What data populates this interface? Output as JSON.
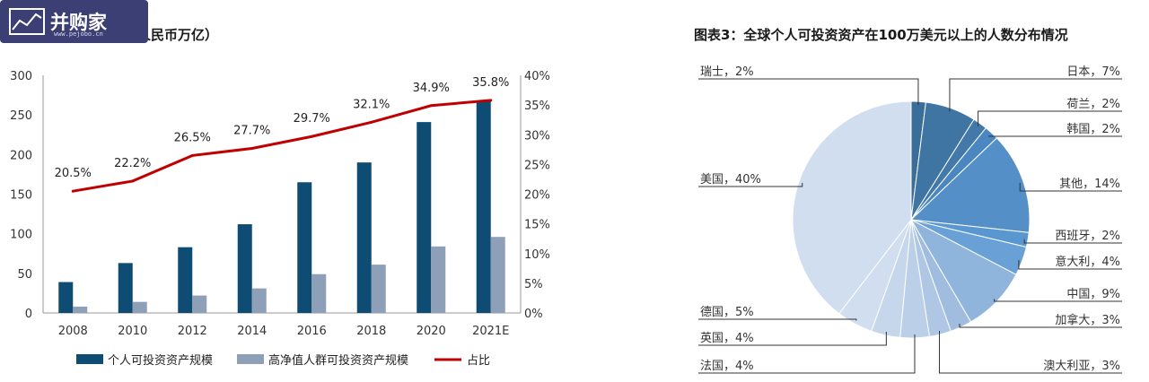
{
  "logo": {
    "text": "并购家",
    "url_text": "www.pejobo.cn",
    "icon": "chart-icon"
  },
  "left_chart_title": "规模（人民币万亿）",
  "right_chart_title": "图表3：全球个人可投资资产在100万美元以上的人数分布情况",
  "colors": {
    "bar1": "#0e4c74",
    "bar2": "#8e9fb8",
    "line": "#c00000",
    "pie": [
      "#3a6d99",
      "#3f75a3",
      "#4379a9",
      "#4a86bf",
      "#548fc7",
      "#5a97d0",
      "#69a1d6",
      "#8fb5dd",
      "#a0bde0",
      "#afc6e4",
      "#bccfe8",
      "#c6d6eb",
      "#d1deef"
    ]
  },
  "chart_data": [
    {
      "type": "bar",
      "categories": [
        "2008",
        "2010",
        "2012",
        "2014",
        "2016",
        "2018",
        "2020",
        "2021E"
      ],
      "series": [
        {
          "name": "个人可投资资产规模",
          "type": "bar",
          "axis": "left",
          "values": [
            39,
            63,
            83,
            112,
            165,
            190,
            241,
            268
          ]
        },
        {
          "name": "高净值人群可投资资产规模",
          "type": "bar",
          "axis": "left",
          "values": [
            8,
            14,
            22,
            31,
            49,
            61,
            84,
            96
          ]
        },
        {
          "name": "占比",
          "type": "line",
          "axis": "right",
          "values": [
            20.5,
            22.2,
            26.5,
            27.7,
            29.7,
            32.1,
            34.9,
            35.8
          ],
          "labels": [
            "20.5%",
            "22.2%",
            "26.5%",
            "27.7%",
            "29.7%",
            "32.1%",
            "34.9%",
            "35.8%"
          ]
        }
      ],
      "ylim_left": [
        0,
        300
      ],
      "yticks_left": [
        "0",
        "50",
        "100",
        "150",
        "200",
        "250",
        "300"
      ],
      "ylim_right": [
        0,
        40
      ],
      "yticks_right": [
        "0%",
        "5%",
        "10%",
        "15%",
        "20%",
        "25%",
        "30%",
        "35%",
        "40%"
      ],
      "grid": false,
      "legend_position": "bottom"
    },
    {
      "type": "pie",
      "start": "top",
      "direction": "clockwise",
      "slices": [
        {
          "label": "瑞士，2%",
          "value": 2
        },
        {
          "label": "日本，7%",
          "value": 7
        },
        {
          "label": "荷兰，2%",
          "value": 2
        },
        {
          "label": "韩国，2%",
          "value": 2
        },
        {
          "label": "其他，14%",
          "value": 14
        },
        {
          "label": "西班牙，2%",
          "value": 2
        },
        {
          "label": "意大利，4%",
          "value": 4
        },
        {
          "label": "中国，9%",
          "value": 9
        },
        {
          "label": "加拿大，3%",
          "value": 3
        },
        {
          "label": "澳大利亚，3%",
          "value": 3
        },
        {
          "label": "法国，4%",
          "value": 4
        },
        {
          "label": "英国，4%",
          "value": 4
        },
        {
          "label": "德国，5%",
          "value": 5
        },
        {
          "label": "美国，40%",
          "value": 40
        }
      ]
    }
  ]
}
